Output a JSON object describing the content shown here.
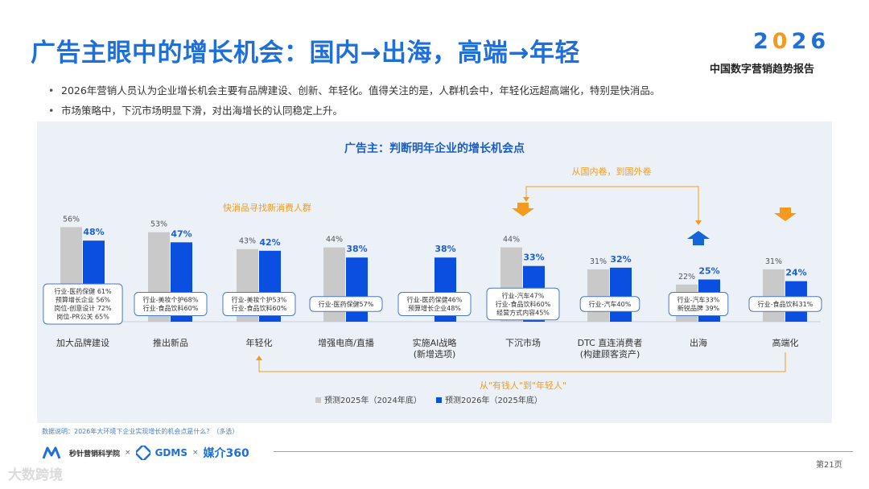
{
  "page": {
    "title": "广告主眼中的增长机会：国内→出海，高端→年轻",
    "logo_2": "2",
    "logo_0": "0",
    "logo_26": "26",
    "report_name": "中国数字营销趋势报告",
    "bullets": [
      "2026年营销人员认为企业增长机会主要有品牌建设、创新、年轻化。值得关注的是，人群机会中，年轻化远超高端化，特别是快消品。",
      "市场策略中，下沉市场明显下滑，对出海增长的认同稳定上升。"
    ],
    "note": "数据说明：2026年大环境下企业实现增长的机会点是什么？（多选）",
    "page_number": "第21页",
    "partners": {
      "p1": "秒针营销科学院",
      "sep": "×",
      "p2": "GDMS",
      "p3": "媒介360"
    },
    "watermark": "大数跨境"
  },
  "colors": {
    "gray_bar": "#c9c9c9",
    "blue_bar": "#0a4fe0",
    "arrow_orange": "#f39a1f",
    "arrow_blue": "#1565d8",
    "title_blue": "#1e6fd9"
  },
  "chart_data": {
    "type": "bar",
    "title": "广告主：判断明年企业的增长机会点",
    "categories": [
      "加大品牌建设",
      "推出新品",
      "年轻化",
      "增强电商/直播",
      "实施AI战略\n(新增选项)",
      "下沉市场",
      "DTC 直连消费者\n(构建顾客资产)",
      "出海",
      "高端化"
    ],
    "series": [
      {
        "name": "预测2025年（2024年底）",
        "values": [
          56,
          53,
          43,
          44,
          null,
          44,
          31,
          22,
          31
        ],
        "labels": [
          "56%",
          "53%",
          "43%",
          "44%",
          "",
          "44%",
          "31%",
          "22%",
          "31%"
        ]
      },
      {
        "name": "预测2026年（2025年底）",
        "values": [
          48,
          47,
          42,
          38,
          38,
          33,
          32,
          25,
          24
        ],
        "labels": [
          "48%",
          "47%",
          "42%",
          "38%",
          "38%",
          "33%",
          "32%",
          "25%",
          "24%"
        ]
      }
    ],
    "ylim": [
      0,
      60
    ],
    "detail_boxes": [
      [
        "行业-医药保健 61%",
        "预算增长企业 56%",
        "岗位-创意设计 72%",
        "岗位-PR公关 65%"
      ],
      [
        "行业-美妆个护68%",
        "行业-食品饮料60%"
      ],
      [
        "行业-美妆个护53%",
        "行业-食品饮料60%"
      ],
      [
        "行业-医药保健57%"
      ],
      [
        "行业-医药保健46%",
        "预算增长企业48%"
      ],
      [
        "行业-汽车47%",
        "行业-食品饮料60%",
        "经营方式内容45%"
      ],
      [
        "行业-汽车40%"
      ],
      [
        "行业-汽车33%",
        "新锐品牌 39%"
      ],
      [
        "行业-食品饮料31%"
      ]
    ],
    "annotations": {
      "fmcg": "快消品寻找新消费人群",
      "domestic_to_overseas": "从国内卷，到国外卷",
      "rich_to_young": "从\"有钱人\"到\"年轻人\""
    },
    "trend_arrows": [
      "",
      "",
      "",
      "",
      "",
      "down",
      "",
      "up",
      "down"
    ]
  }
}
